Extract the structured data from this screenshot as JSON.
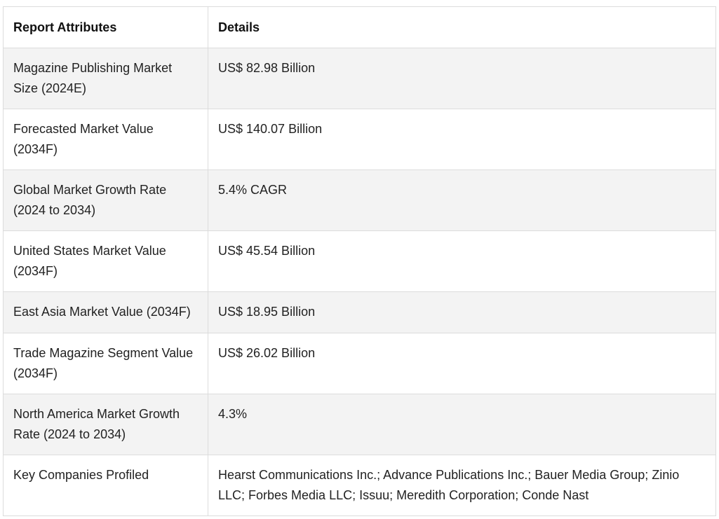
{
  "table": {
    "headers": [
      "Report Attributes",
      "Details"
    ],
    "rows": [
      {
        "attribute": "Magazine Publishing Market Size (2024E)",
        "details": "US$ 82.98 Billion"
      },
      {
        "attribute": "Forecasted Market Value (2034F)",
        "details": "US$ 140.07 Billion"
      },
      {
        "attribute": "Global Market Growth Rate (2024 to 2034)",
        "details": "5.4% CAGR"
      },
      {
        "attribute": "United States Market Value (2034F)",
        "details": "US$ 45.54 Billion"
      },
      {
        "attribute": "East Asia Market Value (2034F)",
        "details": "US$ 18.95 Billion"
      },
      {
        "attribute": "Trade Magazine Segment Value (2034F)",
        "details": "US$ 26.02 Billion"
      },
      {
        "attribute": "North America Market Growth Rate (2024 to 2034)",
        "details": "4.3%"
      },
      {
        "attribute": "Key Companies Profiled",
        "details": "Hearst Communications Inc.; Advance Publications Inc.; Bauer Media Group; Zinio LLC; Forbes Media LLC; Issuu; Meredith Corporation; Conde Nast"
      }
    ]
  }
}
